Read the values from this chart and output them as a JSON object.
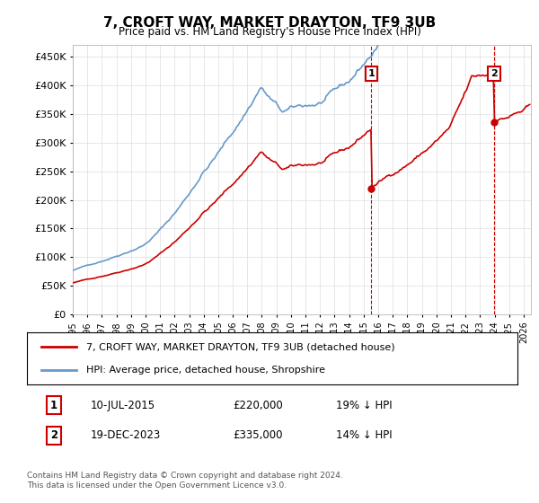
{
  "title": "7, CROFT WAY, MARKET DRAYTON, TF9 3UB",
  "subtitle": "Price paid vs. HM Land Registry's House Price Index (HPI)",
  "ylim": [
    0,
    470000
  ],
  "yticks": [
    0,
    50000,
    100000,
    150000,
    200000,
    250000,
    300000,
    350000,
    400000,
    450000
  ],
  "xlim_start": 1995.0,
  "xlim_end": 2026.5,
  "hpi_color": "#6699cc",
  "price_color": "#cc0000",
  "vline_color": "#cc0000",
  "marker1_date": 2015.52,
  "marker2_date": 2023.96,
  "marker1_price": 220000,
  "marker2_price": 335000,
  "legend_label_price": "7, CROFT WAY, MARKET DRAYTON, TF9 3UB (detached house)",
  "legend_label_hpi": "HPI: Average price, detached house, Shropshire",
  "row1_num": "1",
  "row1_date": "10-JUL-2015",
  "row1_price": "£220,000",
  "row1_hpi": "19% ↓ HPI",
  "row2_num": "2",
  "row2_date": "19-DEC-2023",
  "row2_price": "£335,000",
  "row2_hpi": "14% ↓ HPI",
  "footer": "Contains HM Land Registry data © Crown copyright and database right 2024.\nThis data is licensed under the Open Government Licence v3.0.",
  "background_color": "#ffffff",
  "grid_color": "#dddddd"
}
